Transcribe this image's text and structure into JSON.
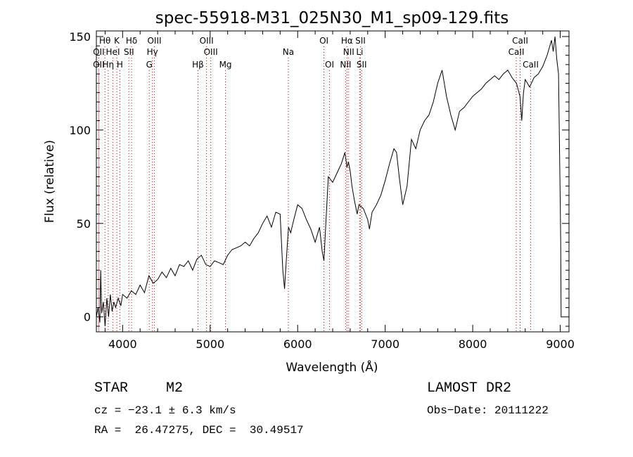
{
  "chart_data": {
    "type": "line",
    "title": "spec-55918-M31_025N30_M1_sp09-129.fits",
    "xlabel": "Wavelength (Å)",
    "ylabel": "Flux (relative)",
    "xlim": [
      3700,
      9100
    ],
    "ylim": [
      -8,
      153
    ],
    "xticks": [
      4000,
      5000,
      6000,
      7000,
      8000,
      9000
    ],
    "yticks": [
      0,
      50,
      100,
      150
    ],
    "grid": false,
    "line_color": "#000000",
    "marker_color": "#cc0000",
    "spectrum": {
      "x": [
        3700,
        3720,
        3740,
        3750,
        3760,
        3780,
        3800,
        3820,
        3840,
        3860,
        3880,
        3900,
        3920,
        3950,
        3980,
        4000,
        4050,
        4100,
        4150,
        4200,
        4250,
        4300,
        4350,
        4400,
        4450,
        4500,
        4550,
        4600,
        4650,
        4700,
        4750,
        4800,
        4850,
        4900,
        4950,
        5000,
        5050,
        5100,
        5150,
        5200,
        5250,
        5300,
        5350,
        5400,
        5450,
        5500,
        5550,
        5600,
        5650,
        5700,
        5750,
        5800,
        5830,
        5850,
        5870,
        5895,
        5920,
        5950,
        6000,
        6050,
        6100,
        6150,
        6200,
        6250,
        6280,
        6300,
        6320,
        6350,
        6400,
        6450,
        6500,
        6540,
        6563,
        6580,
        6600,
        6620,
        6650,
        6680,
        6700,
        6750,
        6800,
        6820,
        6850,
        6900,
        6950,
        7000,
        7050,
        7100,
        7130,
        7160,
        7200,
        7250,
        7300,
        7350,
        7400,
        7450,
        7500,
        7550,
        7600,
        7650,
        7700,
        7750,
        7800,
        7850,
        7900,
        7950,
        8000,
        8050,
        8100,
        8150,
        8200,
        8250,
        8300,
        8350,
        8400,
        8450,
        8500,
        8540,
        8560,
        8580,
        8600,
        8650,
        8700,
        8750,
        8800,
        8850,
        8900,
        8920,
        8940,
        8960,
        8980,
        9000,
        9005,
        9010,
        9020
      ],
      "y": [
        0,
        5,
        -3,
        25,
        2,
        8,
        -5,
        10,
        0,
        12,
        3,
        8,
        5,
        10,
        6,
        12,
        10,
        14,
        12,
        17,
        13,
        22,
        18,
        20,
        24,
        21,
        26,
        22,
        28,
        27,
        30,
        25,
        31,
        33,
        28,
        27,
        30,
        29,
        28,
        33,
        36,
        37,
        38,
        40,
        38,
        42,
        45,
        50,
        54,
        48,
        56,
        55,
        25,
        15,
        30,
        48,
        45,
        51,
        60,
        58,
        52,
        47,
        40,
        48,
        35,
        30,
        48,
        75,
        72,
        77,
        82,
        88,
        80,
        83,
        78,
        70,
        62,
        55,
        60,
        58,
        52,
        47,
        56,
        60,
        65,
        73,
        82,
        90,
        88,
        75,
        60,
        70,
        95,
        90,
        100,
        105,
        108,
        115,
        125,
        132,
        118,
        108,
        100,
        110,
        112,
        115,
        118,
        120,
        122,
        125,
        127,
        129,
        127,
        130,
        132,
        128,
        125,
        118,
        105,
        120,
        127,
        123,
        128,
        130,
        134,
        140,
        148,
        142,
        150,
        138,
        130,
        60,
        40,
        0,
        0
      ]
    },
    "lines": [
      {
        "label": "Hθ",
        "x": 3798,
        "row": 0,
        "dx": 0
      },
      {
        "label": "K",
        "x": 3934,
        "row": 0,
        "dx": 0
      },
      {
        "label": "Hδ",
        "x": 4102,
        "row": 0,
        "dx": 0
      },
      {
        "label": "OIII",
        "x": 4363,
        "row": 0,
        "dx": 0
      },
      {
        "label": "OIII",
        "x": 4959,
        "row": 0,
        "dx": 0
      },
      {
        "label": "OI",
        "x": 6300,
        "row": 0,
        "dx": 0
      },
      {
        "label": "Hα",
        "x": 6563,
        "row": 0,
        "dx": 0
      },
      {
        "label": "SII",
        "x": 6717,
        "row": 0,
        "dx": 0
      },
      {
        "label": "CaII",
        "x": 8542,
        "row": 0,
        "dx": 0
      },
      {
        "label": "OII",
        "x": 3727,
        "row": 1,
        "dx": 0
      },
      {
        "label": "HeI",
        "x": 3889,
        "row": 1,
        "dx": 0
      },
      {
        "label": "SII",
        "x": 4072,
        "row": 1,
        "dx": 0
      },
      {
        "label": "Hγ",
        "x": 4340,
        "row": 1,
        "dx": 0
      },
      {
        "label": "OIII",
        "x": 5007,
        "row": 1,
        "dx": 0
      },
      {
        "label": "Na",
        "x": 5893,
        "row": 1,
        "dx": 0
      },
      {
        "label": "NII",
        "x": 6583,
        "row": 1,
        "dx": 0
      },
      {
        "label": "Li",
        "x": 6708,
        "row": 1,
        "dx": 0
      },
      {
        "label": "CaII",
        "x": 8498,
        "row": 1,
        "dx": 0
      },
      {
        "label": "OII",
        "x": 3727,
        "row": 2,
        "dx": 0
      },
      {
        "label": "Hη",
        "x": 3835,
        "row": 2,
        "dx": 0
      },
      {
        "label": "H",
        "x": 3968,
        "row": 2,
        "dx": 0
      },
      {
        "label": "G",
        "x": 4305,
        "row": 2,
        "dx": 0
      },
      {
        "label": "Hβ",
        "x": 4861,
        "row": 2,
        "dx": 0
      },
      {
        "label": "Mg",
        "x": 5175,
        "row": 2,
        "dx": 0
      },
      {
        "label": "OI",
        "x": 6364,
        "row": 2,
        "dx": 0
      },
      {
        "label": "NII",
        "x": 6548,
        "row": 2,
        "dx": 0
      },
      {
        "label": "SII",
        "x": 6731,
        "row": 2,
        "dx": 0
      },
      {
        "label": "CaII",
        "x": 8662,
        "row": 2,
        "dx": 0
      }
    ]
  },
  "info": {
    "class_label": "STAR",
    "subclass": "M2",
    "survey": "LAMOST DR2",
    "cz": "cz = −23.1 ± 6.3 km/s",
    "obs_date": "Obs−Date: 20111222",
    "coords": "RA =  26.47275, DEC =  30.49517"
  }
}
